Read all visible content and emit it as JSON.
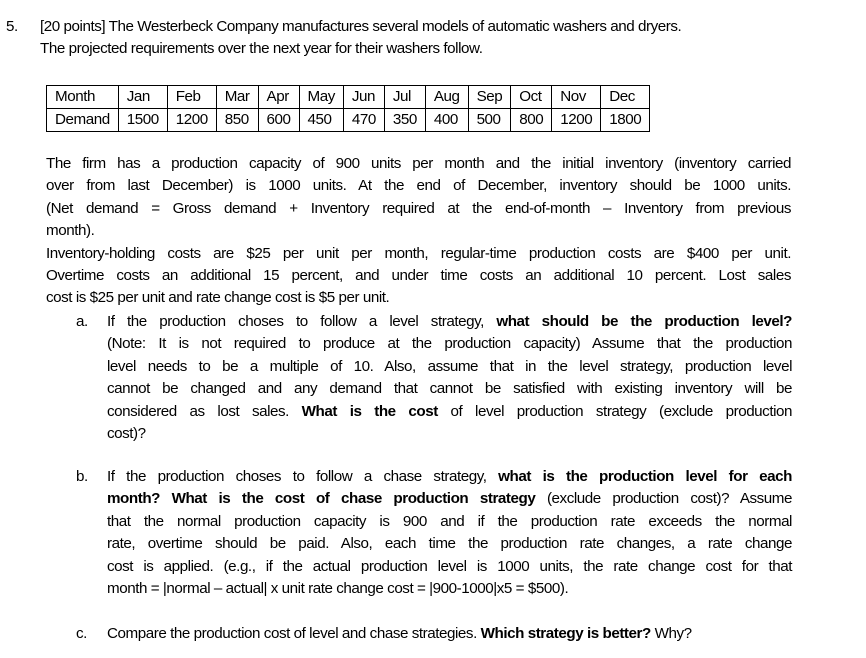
{
  "question": {
    "number": "5.",
    "points": "[20 points]",
    "intro_line1": "[20 points] The Westerbeck Company manufactures several models of automatic washers and dryers.",
    "intro_line2": "The projected requirements over the next year for their washers follow."
  },
  "table": {
    "row_headers": [
      "Month",
      "Demand"
    ],
    "months": [
      "Jan",
      "Feb",
      "Mar",
      "Apr",
      "May",
      "Jun",
      "Jul",
      "Aug",
      "Sep",
      "Oct",
      "Nov",
      "Dec"
    ],
    "demand": [
      "1500",
      "1200",
      "850",
      "600",
      "450",
      "470",
      "350",
      "400",
      "500",
      "800",
      "1200",
      "1800"
    ]
  },
  "context": {
    "lines": [
      "The firm has a production capacity of 900 units per month and the initial inventory (inventory carried",
      "over from last December) is 1000 units. At the end of December, inventory should be 1000 units.",
      "(Net demand = Gross demand + Inventory required at the end-of-month – Inventory from previous",
      "month).",
      "Inventory-holding costs are $25 per unit per month, regular-time production costs are $400 per unit.",
      "Overtime costs an additional 15 percent, and under time costs an additional 10 percent.  Lost sales",
      "cost is $25 per unit and rate change cost is $5 per unit."
    ]
  },
  "part_a": {
    "marker": "a.",
    "l1_plain": "If the production choses to follow a level strategy, ",
    "l1_bold": "what should be the production level?",
    "l2": "(Note: It is not required to produce at the production capacity) Assume that the production",
    "l3": "level needs to be a multiple of 10. Also, assume that in the level strategy, production level",
    "l4": "cannot be changed and any demand that cannot be satisfied with existing inventory will be",
    "l5_plain1": "considered as lost sales. ",
    "l5_bold": "What is the cost",
    "l5_plain2": " of level production strategy (exclude production",
    "l6": "cost)?"
  },
  "part_b": {
    "marker": "b.",
    "l1_plain": "If the production choses to follow a chase strategy, ",
    "l1_bold": "what is the production level for each",
    "l2_bold": "month? What is the cost of chase production strategy",
    "l2_plain": " (exclude production cost)? Assume",
    "l3": "that the normal production capacity is 900 and if the production rate exceeds the normal",
    "l4": "rate, overtime should be paid. Also, each time the production rate changes, a rate change",
    "l5": "cost is applied. (e.g., if the actual production level is 1000 units, the rate change cost for that",
    "l6": "month = |normal – actual| x unit rate change cost = |900-1000|x5 = $500)."
  },
  "part_c": {
    "marker": "c.",
    "l1_plain": "Compare the production cost of level and chase strategies. ",
    "l1_bold": "Which strategy is better?",
    "l1_plain2": " Why?"
  }
}
